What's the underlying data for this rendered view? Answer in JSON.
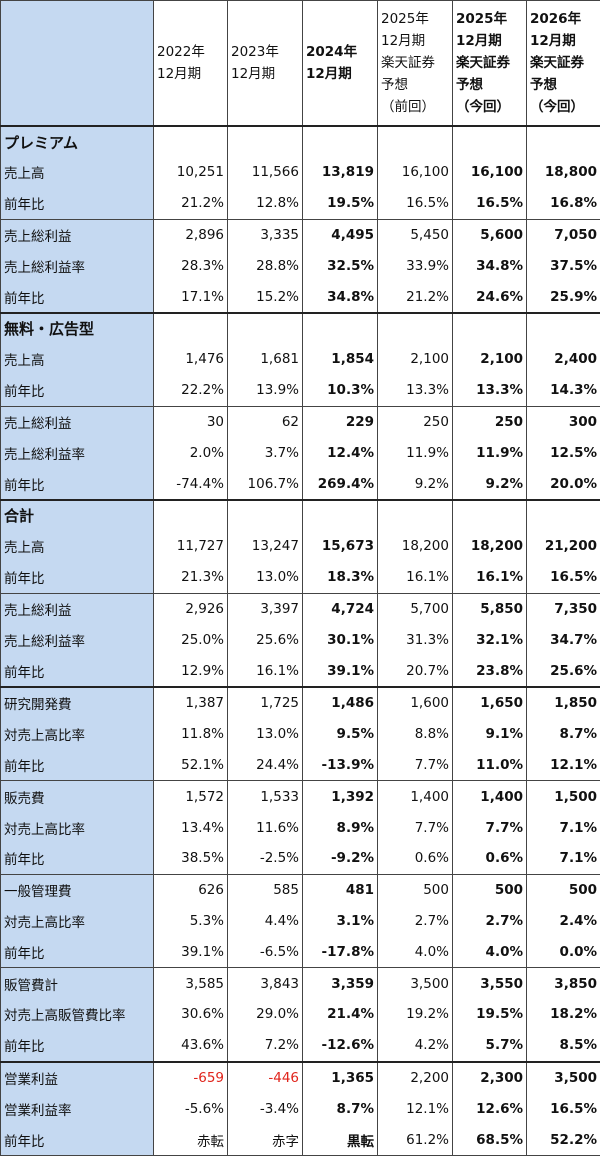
{
  "headers": [
    {
      "label": "",
      "bold": false
    },
    {
      "label": "2022年\n12月期",
      "bold": false
    },
    {
      "label": "2023年\n12月期",
      "bold": false
    },
    {
      "label": "2024年\n12月期",
      "bold": true
    },
    {
      "label": "2025年\n12月期\n楽天証券\n予想\n（前回）",
      "bold": false
    },
    {
      "label": "2025年\n12月期\n楽天証券\n予想\n（今回）",
      "bold": true
    },
    {
      "label": "2026年\n12月期\n楽天証券\n予想\n（今回）",
      "bold": true
    }
  ],
  "rows": [
    {
      "type": "section",
      "label": "プレミアム",
      "sep": "strong"
    },
    {
      "label": "売上高",
      "values": [
        "10,251",
        "11,566",
        "13,819",
        "16,100",
        "16,100",
        "18,800"
      ],
      "sep": "none"
    },
    {
      "label": "前年比",
      "values": [
        "21.2%",
        "12.8%",
        "19.5%",
        "16.5%",
        "16.5%",
        "16.8%"
      ],
      "sep": "none"
    },
    {
      "label": "売上総利益",
      "values": [
        "2,896",
        "3,335",
        "4,495",
        "5,450",
        "5,600",
        "7,050"
      ],
      "sep": "thin"
    },
    {
      "label": "売上総利益率",
      "values": [
        "28.3%",
        "28.8%",
        "32.5%",
        "33.9%",
        "34.8%",
        "37.5%"
      ],
      "sep": "none"
    },
    {
      "label": "前年比",
      "values": [
        "17.1%",
        "15.2%",
        "34.8%",
        "21.2%",
        "24.6%",
        "25.9%"
      ],
      "sep": "none"
    },
    {
      "type": "section",
      "label": "無料・広告型",
      "sep": "strong"
    },
    {
      "label": "売上高",
      "values": [
        "1,476",
        "1,681",
        "1,854",
        "2,100",
        "2,100",
        "2,400"
      ],
      "sep": "none"
    },
    {
      "label": "前年比",
      "values": [
        "22.2%",
        "13.9%",
        "10.3%",
        "13.3%",
        "13.3%",
        "14.3%"
      ],
      "sep": "none"
    },
    {
      "label": "売上総利益",
      "values": [
        "30",
        "62",
        "229",
        "250",
        "250",
        "300"
      ],
      "sep": "thin"
    },
    {
      "label": "売上総利益率",
      "values": [
        "2.0%",
        "3.7%",
        "12.4%",
        "11.9%",
        "11.9%",
        "12.5%"
      ],
      "sep": "none"
    },
    {
      "label": "前年比",
      "values": [
        "-74.4%",
        "106.7%",
        "269.4%",
        "9.2%",
        "9.2%",
        "20.0%"
      ],
      "sep": "none"
    },
    {
      "type": "section",
      "label": "合計",
      "sep": "strong"
    },
    {
      "label": "売上高",
      "values": [
        "11,727",
        "13,247",
        "15,673",
        "18,200",
        "18,200",
        "21,200"
      ],
      "sep": "none"
    },
    {
      "label": "前年比",
      "values": [
        "21.3%",
        "13.0%",
        "18.3%",
        "16.1%",
        "16.1%",
        "16.5%"
      ],
      "sep": "none"
    },
    {
      "label": "売上総利益",
      "values": [
        "2,926",
        "3,397",
        "4,724",
        "5,700",
        "5,850",
        "7,350"
      ],
      "sep": "thin"
    },
    {
      "label": "売上総利益率",
      "values": [
        "25.0%",
        "25.6%",
        "30.1%",
        "31.3%",
        "32.1%",
        "34.7%"
      ],
      "sep": "none"
    },
    {
      "label": "前年比",
      "values": [
        "12.9%",
        "16.1%",
        "39.1%",
        "20.7%",
        "23.8%",
        "25.6%"
      ],
      "sep": "none"
    },
    {
      "label": "研究開発費",
      "values": [
        "1,387",
        "1,725",
        "1,486",
        "1,600",
        "1,650",
        "1,850"
      ],
      "sep": "strong"
    },
    {
      "label": "対売上高比率",
      "values": [
        "11.8%",
        "13.0%",
        "9.5%",
        "8.8%",
        "9.1%",
        "8.7%"
      ],
      "sep": "none"
    },
    {
      "label": "前年比",
      "values": [
        "52.1%",
        "24.4%",
        "-13.9%",
        "7.7%",
        "11.0%",
        "12.1%"
      ],
      "sep": "none"
    },
    {
      "label": "販売費",
      "values": [
        "1,572",
        "1,533",
        "1,392",
        "1,400",
        "1,400",
        "1,500"
      ],
      "sep": "thin"
    },
    {
      "label": "対売上高比率",
      "values": [
        "13.4%",
        "11.6%",
        "8.9%",
        "7.7%",
        "7.7%",
        "7.1%"
      ],
      "sep": "none"
    },
    {
      "label": "前年比",
      "values": [
        "38.5%",
        "-2.5%",
        "-9.2%",
        "0.6%",
        "0.6%",
        "7.1%"
      ],
      "sep": "none"
    },
    {
      "label": "一般管理費",
      "values": [
        "626",
        "585",
        "481",
        "500",
        "500",
        "500"
      ],
      "sep": "thin"
    },
    {
      "label": "対売上高比率",
      "values": [
        "5.3%",
        "4.4%",
        "3.1%",
        "2.7%",
        "2.7%",
        "2.4%"
      ],
      "sep": "none"
    },
    {
      "label": "前年比",
      "values": [
        "39.1%",
        "-6.5%",
        "-17.8%",
        "4.0%",
        "4.0%",
        "0.0%"
      ],
      "sep": "none"
    },
    {
      "label": "販管費計",
      "values": [
        "3,585",
        "3,843",
        "3,359",
        "3,500",
        "3,550",
        "3,850"
      ],
      "sep": "thin"
    },
    {
      "label": "対売上高販管費比率",
      "values": [
        "30.6%",
        "29.0%",
        "21.4%",
        "19.2%",
        "19.5%",
        "18.2%"
      ],
      "sep": "none"
    },
    {
      "label": "前年比",
      "values": [
        "43.6%",
        "7.2%",
        "-12.6%",
        "4.2%",
        "5.7%",
        "8.5%"
      ],
      "sep": "none"
    },
    {
      "label": "営業利益",
      "values": [
        "-659",
        "-446",
        "1,365",
        "2,200",
        "2,300",
        "3,500"
      ],
      "sep": "strong",
      "red": [
        0,
        1
      ]
    },
    {
      "label": "営業利益率",
      "values": [
        "-5.6%",
        "-3.4%",
        "8.7%",
        "12.1%",
        "12.6%",
        "16.5%"
      ],
      "sep": "none"
    },
    {
      "label": "前年比",
      "values": [
        "赤転",
        "赤字",
        "黒転",
        "61.2%",
        "68.5%",
        "52.2%"
      ],
      "sep": "none"
    }
  ],
  "colors": {
    "label_bg": "#c5d9f1",
    "negative": "#e0241b",
    "border": "#444444"
  }
}
